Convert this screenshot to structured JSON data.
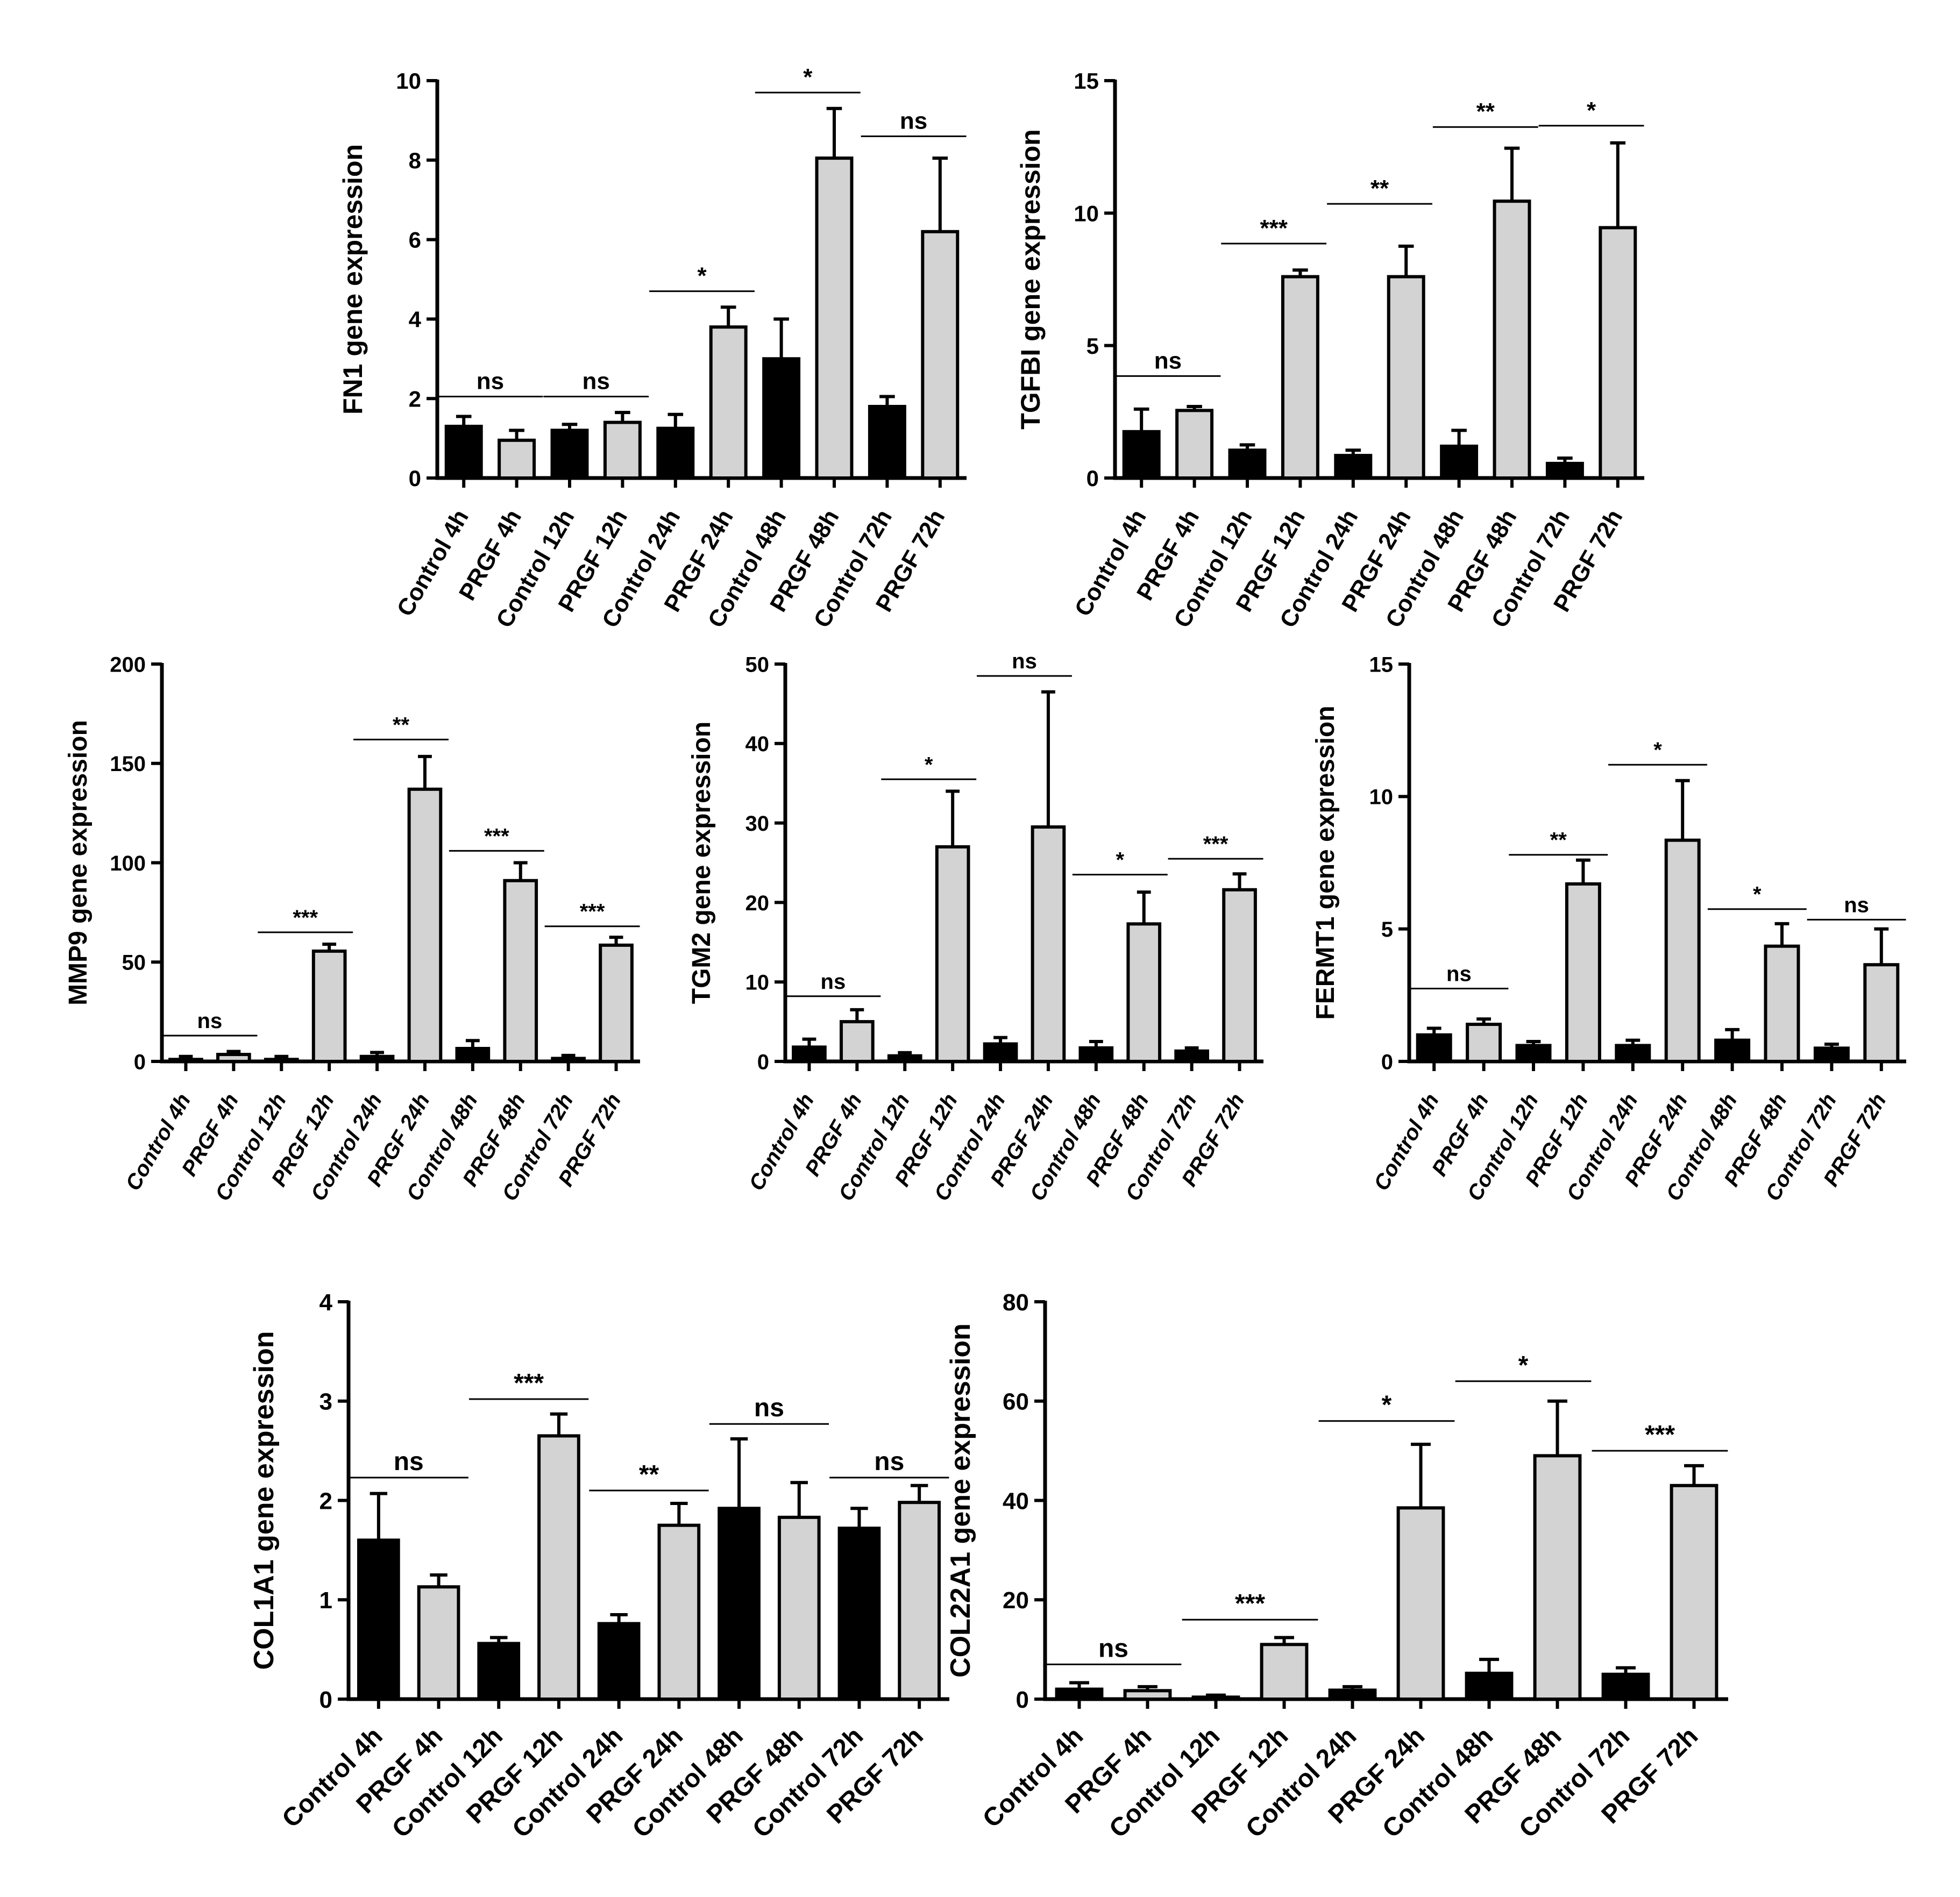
{
  "colors": {
    "control_fill": "#000000",
    "prgf_fill": "#d3d3d3",
    "bar_stroke": "#000000"
  },
  "chart_data": [
    {
      "type": "bar",
      "ylabel": "FN1 gene expression",
      "ylim": [
        0,
        10
      ],
      "yticks": [
        "0",
        "2",
        "4",
        "6",
        "8",
        "10"
      ],
      "categories": [
        "Control 4h",
        "PRGF 4h",
        "Control 12h",
        "PRGF 12h",
        "Control 24h",
        "PRGF 24h",
        "Control 48h",
        "PRGF 48h",
        "Control 72h",
        "PRGF 72h"
      ],
      "values": [
        1.3,
        0.95,
        1.2,
        1.4,
        1.25,
        3.8,
        3.0,
        8.05,
        1.8,
        6.2
      ],
      "errors": [
        0.25,
        0.25,
        0.15,
        0.25,
        0.35,
        0.5,
        1.0,
        1.25,
        0.25,
        1.85
      ],
      "significance": [
        {
          "pair": [
            0,
            1
          ],
          "label": "ns",
          "level": 2.05
        },
        {
          "pair": [
            2,
            3
          ],
          "label": "ns",
          "level": 2.05
        },
        {
          "pair": [
            4,
            5
          ],
          "label": "*",
          "level": 4.7
        },
        {
          "pair": [
            6,
            7
          ],
          "label": "*",
          "level": 9.7
        },
        {
          "pair": [
            8,
            9
          ],
          "label": "ns",
          "level": 8.6
        }
      ],
      "label_rotation": -60,
      "label_italic": false
    },
    {
      "type": "bar",
      "ylabel": "TGFBI gene expression",
      "ylim": [
        0,
        15
      ],
      "yticks": [
        "0",
        "5",
        "10",
        "15"
      ],
      "categories": [
        "Control 4h",
        "PRGF 4h",
        "Control 12h",
        "PRGF 12h",
        "Control 24h",
        "PRGF 24h",
        "Control 48h",
        "PRGF 48h",
        "Control 72h",
        "PRGF 72h"
      ],
      "values": [
        1.75,
        2.55,
        1.05,
        7.6,
        0.85,
        7.6,
        1.2,
        10.45,
        0.55,
        9.45
      ],
      "errors": [
        0.85,
        0.15,
        0.2,
        0.25,
        0.2,
        1.15,
        0.6,
        2.0,
        0.2,
        3.2
      ],
      "significance": [
        {
          "pair": [
            0,
            1
          ],
          "label": "ns",
          "level": 3.85
        },
        {
          "pair": [
            2,
            3
          ],
          "label": "***",
          "level": 8.85
        },
        {
          "pair": [
            4,
            5
          ],
          "label": "**",
          "level": 10.35
        },
        {
          "pair": [
            6,
            7
          ],
          "label": "**",
          "level": 13.25
        },
        {
          "pair": [
            8,
            9
          ],
          "label": "*",
          "level": 13.3
        }
      ],
      "label_rotation": -60,
      "label_italic": false
    },
    {
      "type": "bar",
      "ylabel": "MMP9 gene expression",
      "ylim": [
        0,
        200
      ],
      "yticks": [
        "0",
        "50",
        "100",
        "150",
        "200"
      ],
      "categories": [
        "Control 4h",
        "PRGF 4h",
        "Control 12h",
        "PRGF 12h",
        "Control 24h",
        "PRGF 24h",
        "Control 48h",
        "PRGF 48h",
        "Control 72h",
        "PRGF 72h"
      ],
      "values": [
        1,
        3.5,
        1,
        55.5,
        2.5,
        137,
        6.5,
        91,
        1.5,
        58.5
      ],
      "errors": [
        1.5,
        1.5,
        1.5,
        3.5,
        2.0,
        16.5,
        4.0,
        9.0,
        1.5,
        4.0
      ],
      "significance": [
        {
          "pair": [
            0,
            1
          ],
          "label": "ns",
          "level": 13
        },
        {
          "pair": [
            2,
            3
          ],
          "label": "***",
          "level": 65
        },
        {
          "pair": [
            4,
            5
          ],
          "label": "**",
          "level": 162
        },
        {
          "pair": [
            6,
            7
          ],
          "label": "***",
          "level": 106
        },
        {
          "pair": [
            8,
            9
          ],
          "label": "***",
          "level": 68
        }
      ],
      "label_rotation": -60,
      "label_italic": true
    },
    {
      "type": "bar",
      "ylabel": "TGM2 gene  expression",
      "ylim": [
        0,
        50
      ],
      "yticks": [
        "0",
        "10",
        "20",
        "30",
        "40",
        "50"
      ],
      "categories": [
        "Control 4h",
        "PRGF 4h",
        "Control 12h",
        "PRGF 12h",
        "Control 24h",
        "PRGF 24h",
        "Control 48h",
        "PRGF 48h",
        "Control 72h",
        "PRGF 72h"
      ],
      "values": [
        1.8,
        5.0,
        0.7,
        27,
        2.2,
        29.5,
        1.7,
        17.3,
        1.3,
        21.6
      ],
      "errors": [
        1.0,
        1.5,
        0.4,
        7.0,
        0.8,
        17.0,
        0.8,
        4.0,
        0.4,
        2.0
      ],
      "significance": [
        {
          "pair": [
            0,
            1
          ],
          "label": "ns",
          "level": 8.2
        },
        {
          "pair": [
            2,
            3
          ],
          "label": "*",
          "level": 35.5
        },
        {
          "pair": [
            4,
            5
          ],
          "label": "ns",
          "level": 48.5
        },
        {
          "pair": [
            6,
            7
          ],
          "label": "*",
          "level": 23.5
        },
        {
          "pair": [
            8,
            9
          ],
          "label": "***",
          "level": 25.5
        }
      ],
      "label_rotation": -60,
      "label_italic": true
    },
    {
      "type": "bar",
      "ylabel": "FERMT1 gene expression",
      "ylim": [
        0,
        15
      ],
      "yticks": [
        "0",
        "5",
        "10",
        "15"
      ],
      "categories": [
        "Control 4h",
        "PRGF 4h",
        "Control 12h",
        "PRGF 12h",
        "Control 24h",
        "PRGF 24h",
        "Control 48h",
        "PRGF 48h",
        "Control 72h",
        "PRGF 72h"
      ],
      "values": [
        1.0,
        1.4,
        0.6,
        6.7,
        0.6,
        8.35,
        0.8,
        4.35,
        0.5,
        3.65
      ],
      "errors": [
        0.25,
        0.2,
        0.15,
        0.9,
        0.2,
        2.25,
        0.4,
        0.85,
        0.15,
        1.35
      ],
      "significance": [
        {
          "pair": [
            0,
            1
          ],
          "label": "ns",
          "level": 2.75
        },
        {
          "pair": [
            2,
            3
          ],
          "label": "**",
          "level": 7.8
        },
        {
          "pair": [
            4,
            5
          ],
          "label": "*",
          "level": 11.2
        },
        {
          "pair": [
            6,
            7
          ],
          "label": "*",
          "level": 5.75
        },
        {
          "pair": [
            8,
            9
          ],
          "label": "ns",
          "level": 5.35
        }
      ],
      "label_rotation": -60,
      "label_italic": true
    },
    {
      "type": "bar",
      "ylabel": "COL1A1 gene expression",
      "ylim": [
        0,
        4
      ],
      "yticks": [
        "0",
        "1",
        "2",
        "3",
        "4"
      ],
      "categories": [
        "Control 4h",
        "PRGF 4h",
        "Control 12h",
        "PRGF 12h",
        "Control 24h",
        "PRGF 24h",
        "Control 48h",
        "PRGF 48h",
        "Control 72h",
        "PRGF 72h"
      ],
      "values": [
        1.6,
        1.13,
        0.56,
        2.65,
        0.76,
        1.75,
        1.92,
        1.83,
        1.72,
        1.98
      ],
      "errors": [
        0.47,
        0.12,
        0.06,
        0.22,
        0.09,
        0.22,
        0.7,
        0.35,
        0.2,
        0.17
      ],
      "significance": [
        {
          "pair": [
            0,
            1
          ],
          "label": "ns",
          "level": 2.23
        },
        {
          "pair": [
            2,
            3
          ],
          "label": "***",
          "level": 3.02
        },
        {
          "pair": [
            4,
            5
          ],
          "label": "**",
          "level": 2.1
        },
        {
          "pair": [
            6,
            7
          ],
          "label": "ns",
          "level": 2.77
        },
        {
          "pair": [
            8,
            9
          ],
          "label": "ns",
          "level": 2.23
        }
      ],
      "label_rotation": -45,
      "label_italic": false
    },
    {
      "type": "bar",
      "ylabel": "COL22A1 gene  expression",
      "ylim": [
        0,
        80
      ],
      "yticks": [
        "0",
        "20",
        "40",
        "60",
        "80"
      ],
      "categories": [
        "Control 4h",
        "PRGF 4h",
        "Control 12h",
        "PRGF 12h",
        "Control 24h",
        "PRGF 24h",
        "Control 48h",
        "PRGF 48h",
        "Control 72h",
        "PRGF 72h"
      ],
      "values": [
        2.0,
        1.7,
        0.4,
        11.0,
        1.8,
        38.5,
        5.2,
        49,
        5.0,
        43
      ],
      "errors": [
        1.3,
        0.8,
        0.4,
        1.4,
        0.7,
        12.8,
        2.8,
        11.0,
        1.3,
        4.0
      ],
      "significance": [
        {
          "pair": [
            0,
            1
          ],
          "label": "ns",
          "level": 7
        },
        {
          "pair": [
            2,
            3
          ],
          "label": "***",
          "level": 16
        },
        {
          "pair": [
            4,
            5
          ],
          "label": "*",
          "level": 56
        },
        {
          "pair": [
            6,
            7
          ],
          "label": "*",
          "level": 64
        },
        {
          "pair": [
            8,
            9
          ],
          "label": "***",
          "level": 50
        }
      ],
      "label_rotation": -45,
      "label_italic": false
    }
  ]
}
